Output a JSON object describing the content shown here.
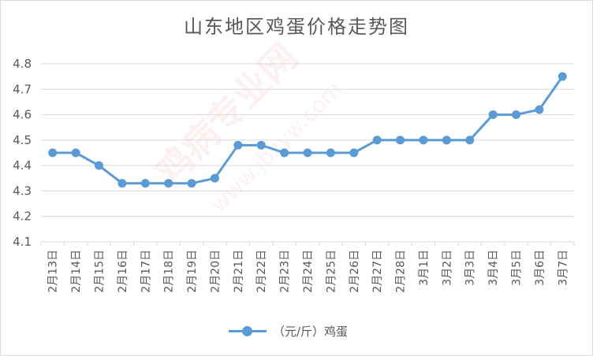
{
  "chart_data": {
    "type": "line",
    "title": "山东地区鸡蛋价格走势图",
    "xlabel": "",
    "ylabel": "",
    "categories": [
      "2月13日",
      "2月14日",
      "2月15日",
      "2月16日",
      "2月17日",
      "2月18日",
      "2月19日",
      "2月20日",
      "2月21日",
      "2月22日",
      "2月23日",
      "2月24日",
      "2月25日",
      "2月26日",
      "2月27日",
      "2月28日",
      "3月1日",
      "3月2日",
      "3月3日",
      "3月4日",
      "3月5日",
      "3月6日",
      "3月7日"
    ],
    "series": [
      {
        "name": "（元/斤）鸡蛋",
        "values": [
          4.45,
          4.45,
          4.4,
          4.33,
          4.33,
          4.33,
          4.33,
          4.35,
          4.48,
          4.48,
          4.45,
          4.45,
          4.45,
          4.45,
          4.5,
          4.5,
          4.5,
          4.5,
          4.5,
          4.6,
          4.6,
          4.62,
          4.75
        ]
      }
    ],
    "ylim": [
      4.1,
      4.8
    ],
    "yticks": [
      "4.1",
      "4.2",
      "4.3",
      "4.4",
      "4.5",
      "4.6",
      "4.7",
      "4.8"
    ],
    "grid": true,
    "legend": "bottom",
    "colors": {
      "series": "#5b9bd5",
      "grid": "#d9d9d9",
      "text": "#595959"
    }
  },
  "watermark": {
    "text": "鸡病专业网",
    "url": "www.jbzyw.com"
  }
}
